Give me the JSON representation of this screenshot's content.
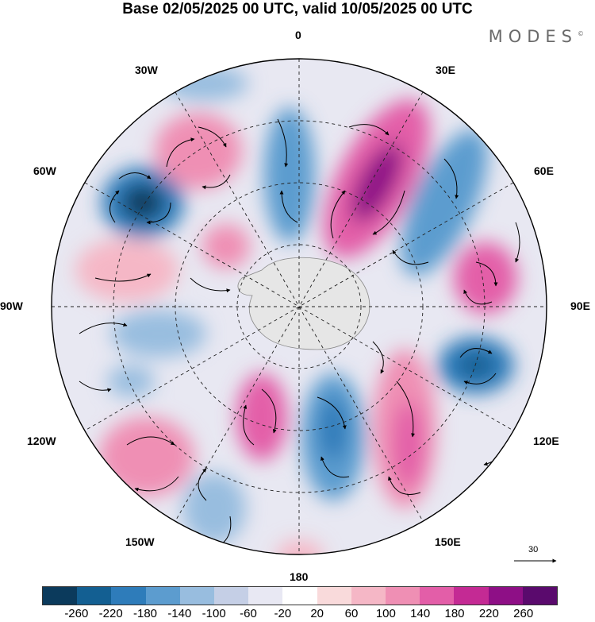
{
  "title": "Base 02/05/2025 00 UTC, valid 10/05/2025 00 UTC",
  "brand": "MODES",
  "brand_mark": "©",
  "map_labels": {
    "lon_0": "0",
    "lon_180": "180",
    "lon_30w": "30W",
    "lon_30e": "30E",
    "lon_60w": "60W",
    "lon_60e": "60E",
    "lon_90w": "90W",
    "lon_90e": "90E",
    "lon_120w": "120W",
    "lon_120e": "120E",
    "lon_150w": "150W",
    "lon_150e": "150E"
  },
  "wind_reference": "30",
  "colorbar": {
    "colors": [
      "#0b3a5c",
      "#135f92",
      "#2e7cba",
      "#5c9ccf",
      "#98bddf",
      "#c5cfe6",
      "#e8e8f3",
      "#ffffff",
      "#f9dadb",
      "#f5b7c6",
      "#ef8fb4",
      "#e35ea8",
      "#c42a94",
      "#8e0f86",
      "#5a0a6d"
    ],
    "ticks": [
      "-260",
      "-220",
      "-180",
      "-140",
      "-100",
      "-60",
      "-20",
      "20",
      "60",
      "100",
      "140",
      "180",
      "220",
      "260"
    ]
  }
}
